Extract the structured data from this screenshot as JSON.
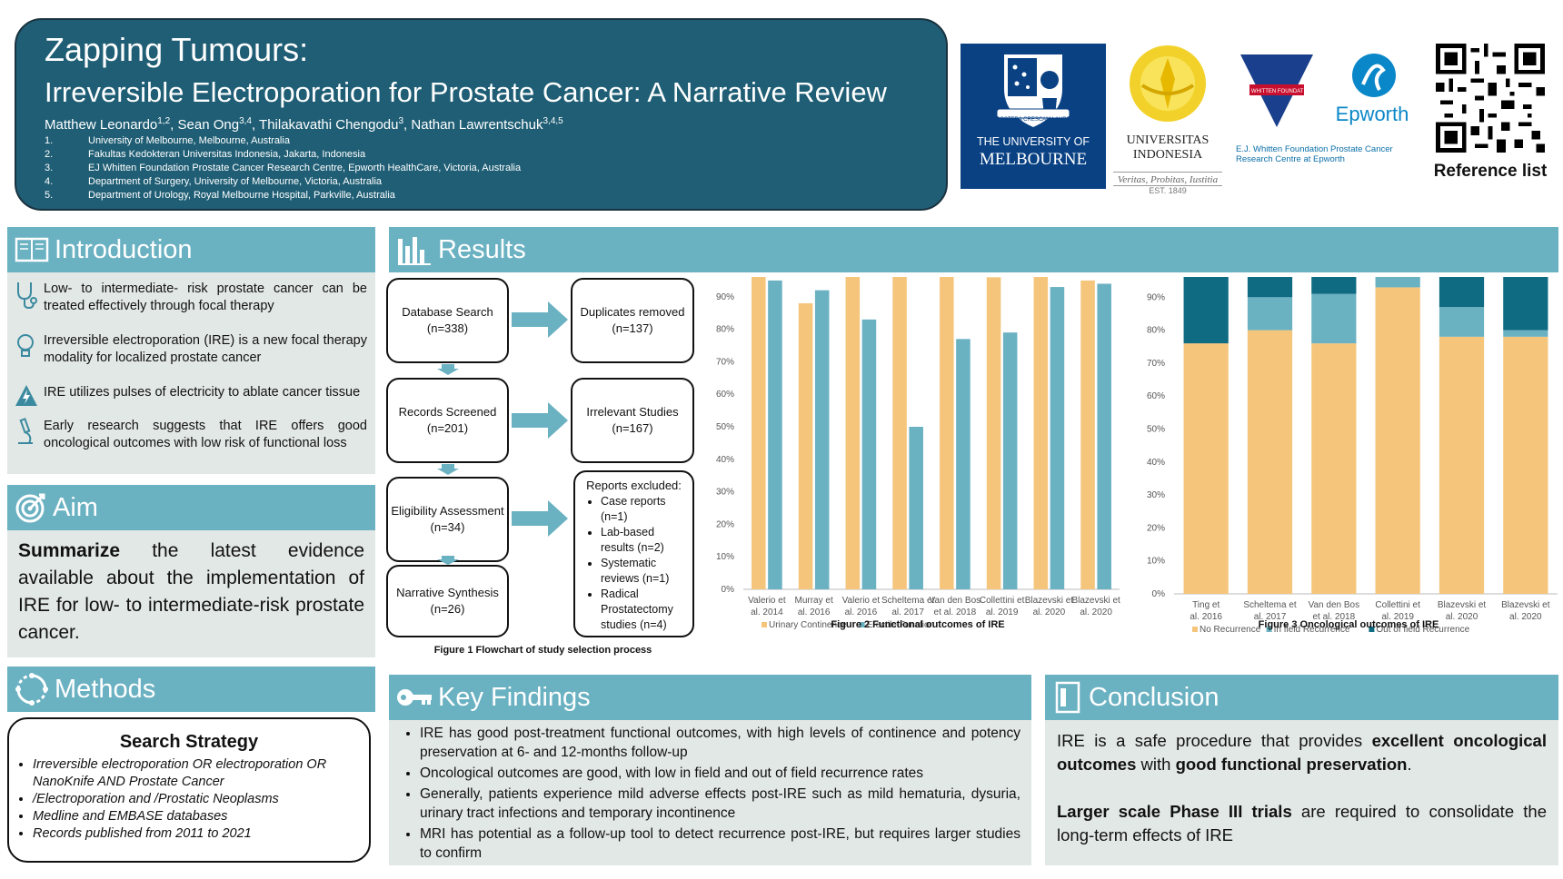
{
  "header": {
    "title": "Zapping Tumours:",
    "subtitle": "Irreversible Electroporation for Prostate Cancer: A Narrative Review",
    "authors": [
      {
        "name": "Matthew Leonardo",
        "sup": "1,2",
        "sep": ", "
      },
      {
        "name": "Sean Ong",
        "sup": "3,4",
        "sep": ", "
      },
      {
        "name": "Thilakavathi Chengodu",
        "sup": "3",
        "sep": ", "
      },
      {
        "name": "Nathan Lawrentschuk",
        "sup": "3,4,5",
        "sep": ""
      }
    ],
    "affiliations": [
      {
        "n": "1.",
        "text": "University of Melbourne, Melbourne, Australia"
      },
      {
        "n": "2.",
        "text": "Fakultas Kedokteran Universitas Indonesia, Jakarta, Indonesia"
      },
      {
        "n": "3.",
        "text": "EJ Whitten Foundation Prostate Cancer Research Centre, Epworth HealthCare, Victoria, Australia"
      },
      {
        "n": "4.",
        "text": "Department of Surgery, University of Melbourne, Victoria, Australia"
      },
      {
        "n": "5.",
        "text": "Department of Urology, Royal Melbourne Hospital, Parkville, Australia"
      }
    ]
  },
  "logos": {
    "melbourne": {
      "line1": "THE UNIVERSITY OF",
      "line2": "MELBOURNE",
      "motto": "POSTERA CRESCAM LAUDE"
    },
    "ui": {
      "line1": "UNIVERSITAS",
      "line2": "INDONESIA",
      "motto": "Veritas, Probitas, Iustitia",
      "est": "EST. 1849"
    },
    "ejw": {
      "brand": "Epworth",
      "text1": "E.J. Whitten Foundation Prostate Cancer",
      "text2": "Research Centre at Epworth",
      "badge": "E.J. WHITTEN FOUNDATION"
    },
    "qr_label": "Reference list"
  },
  "intro": {
    "heading": "Introduction",
    "items": [
      {
        "icon": "stethoscope-icon",
        "text": "Low- to intermediate- risk prostate cancer can be treated effectively through focal therapy"
      },
      {
        "icon": "lightbulb-icon",
        "text": "Irreversible electroporation (IRE) is a new focal therapy modality for localized prostate cancer"
      },
      {
        "icon": "lightning-icon",
        "text": "IRE utilizes pulses of electricity to ablate cancer tissue"
      },
      {
        "icon": "microscope-icon",
        "text": "Early research suggests that IRE offers good oncological outcomes with low risk of functional loss"
      }
    ]
  },
  "aim": {
    "heading": "Aim",
    "bold": "Summarize",
    "text": " the latest evidence available about the implementation of IRE for low- to intermediate-risk prostate cancer."
  },
  "methods": {
    "heading": "Methods",
    "box_title": "Search Strategy",
    "items": [
      "Irreversible electroporation OR electroporation OR NanoKnife AND Prostate Cancer",
      "/Electroporation and /Prostatic Neoplasms",
      "Medline and EMBASE databases",
      "Records published from 2011 to 2021"
    ]
  },
  "results": {
    "heading": "Results",
    "flow": {
      "db": {
        "label": "Database Search",
        "n": "(n=338)"
      },
      "screened": {
        "label": "Records Screened",
        "n": "(n=201)"
      },
      "elig": {
        "label": "Eligibility Assessment",
        "n": "(n=34)"
      },
      "synth": {
        "label": "Narrative Synthesis",
        "n": "(n=26)"
      },
      "dup": {
        "label": "Duplicates removed",
        "n": "(n=137)"
      },
      "irr": {
        "label": "Irrelevant Studies",
        "n": "(n=167)"
      },
      "excl_title": "Reports excluded:",
      "excl_items": [
        "Case reports (n=1)",
        "Lab-based results (n=2)",
        "Systematic reviews (n=1)",
        "Radical Prostatectomy studies (n=4)"
      ],
      "caption": "Figure 1 Flowchart of study selection process"
    }
  },
  "chart_data": [
    {
      "type": "bar",
      "title": "Figure 2 Functional outcomes of IRE",
      "categories": [
        "Valerio et al. 2014",
        "Murray et al. 2016",
        "Valerio et al. 2016",
        "Scheltema et al. 2017",
        "Van den Bos et al. 2018",
        "Collettini et al. 2019",
        "Blazevski et al. 2020",
        "Blazevski et al. 2020"
      ],
      "series": [
        {
          "name": "Urinary Continence",
          "color": "#f5c57c",
          "values": [
            100,
            88,
            100,
            100,
            100,
            96,
            99,
            95
          ]
        },
        {
          "name": "Erectile Function",
          "color": "#6ab1c2",
          "values": [
            95,
            92,
            83,
            50,
            77,
            79,
            93,
            94
          ]
        }
      ],
      "ylim": [
        0,
        100
      ],
      "yticks": [
        "0%",
        "10%",
        "20%",
        "30%",
        "40%",
        "50%",
        "60%",
        "70%",
        "80%",
        "90%",
        "100%"
      ]
    },
    {
      "type": "bar",
      "stacked": true,
      "title": "Figure 3 Oncological outcomes of IRE",
      "categories": [
        "Ting et al. 2016",
        "Scheltema et al. 2017",
        "Van den Bos et al. 2018",
        "Collettini et al. 2019",
        "Blazevski et al. 2020",
        "Blazevski et al. 2020"
      ],
      "series": [
        {
          "name": "No Recurrence",
          "color": "#f5c57c",
          "values": [
            76,
            80,
            76,
            93,
            78,
            78
          ]
        },
        {
          "name": "In field Recurrence",
          "color": "#6ab1c2",
          "values": [
            0,
            10,
            15,
            7,
            9,
            2
          ]
        },
        {
          "name": "Out of field Recurrence",
          "color": "#0f6b82",
          "values": [
            24,
            10,
            9,
            0,
            13,
            20
          ]
        }
      ],
      "ylim": [
        0,
        100
      ],
      "yticks": [
        "0%",
        "10%",
        "20%",
        "30%",
        "40%",
        "50%",
        "60%",
        "70%",
        "80%",
        "90%",
        "100%"
      ]
    }
  ],
  "findings": {
    "heading": "Key Findings",
    "items": [
      "IRE has good post-treatment functional outcomes, with high levels of continence and potency preservation at 6- and 12-months follow-up",
      "Oncological outcomes are good, with low in field and out of field recurrence rates",
      "Generally, patients experience mild adverse effects post-IRE such as mild hematuria, dysuria, urinary tract infections and temporary incontinence",
      "MRI has potential as a follow-up tool to detect recurrence post-IRE, but requires larger studies to confirm"
    ]
  },
  "conclusion": {
    "heading": "Conclusion",
    "p1": [
      {
        "t": "IRE is a safe procedure that provides ",
        "b": false
      },
      {
        "t": "excellent oncological outcomes",
        "b": true
      },
      {
        "t": " with ",
        "b": false
      },
      {
        "t": "good functional preservation",
        "b": true
      },
      {
        "t": ".",
        "b": false
      }
    ],
    "p2": [
      {
        "t": "Larger scale Phase III trials",
        "b": true
      },
      {
        "t": " are required to consolidate the long-term effects of IRE",
        "b": false
      }
    ]
  }
}
